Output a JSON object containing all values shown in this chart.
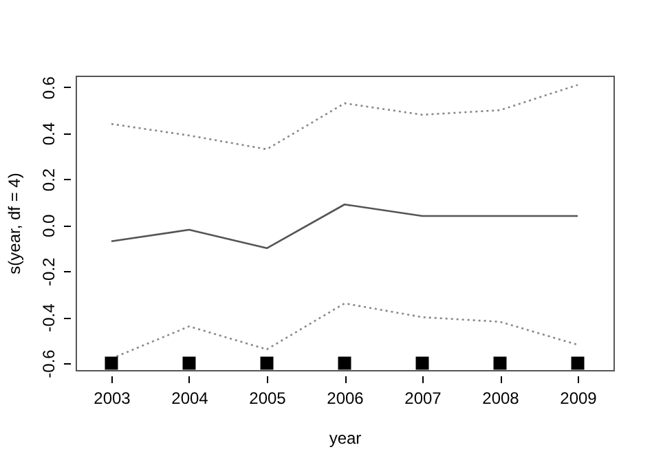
{
  "chart_data": {
    "type": "line",
    "xlabel": "year",
    "ylabel": "s(year, df = 4)",
    "x": [
      2003,
      2004,
      2005,
      2006,
      2007,
      2008,
      2009
    ],
    "series": [
      {
        "color": "#555555",
        "line_style": "solid",
        "values": [
          -0.07,
          -0.02,
          -0.1,
          0.09,
          0.04,
          0.04,
          0.04
        ]
      },
      {
        "color": "#888888",
        "line_style": "dotted",
        "values": [
          0.44,
          0.39,
          0.33,
          0.53,
          0.48,
          0.5,
          0.61
        ]
      },
      {
        "color": "#888888",
        "line_style": "dotted",
        "values": [
          -0.58,
          -0.44,
          -0.54,
          -0.34,
          -0.4,
          -0.42,
          -0.52
        ]
      },
      {
        "type": "scatter",
        "marker": "square",
        "color": "#000000",
        "values": [
          -0.6,
          -0.6,
          -0.6,
          -0.6,
          -0.6,
          -0.6,
          -0.6
        ]
      }
    ],
    "xlim": [
      2002.54,
      2009.46
    ],
    "ylim": [
      -0.63,
      0.65
    ],
    "xticks": [
      2003,
      2004,
      2005,
      2006,
      2007,
      2008,
      2009
    ],
    "yticks": [
      {
        "value": -0.6,
        "label": "-0.6"
      },
      {
        "value": -0.4,
        "label": "-0.4"
      },
      {
        "value": -0.2,
        "label": "-0.2"
      },
      {
        "value": 0,
        "label": "0.0"
      },
      {
        "value": 0.2,
        "label": "0.2"
      },
      {
        "value": 0.4,
        "label": "0.4"
      },
      {
        "value": 0.6,
        "label": "0.6"
      }
    ],
    "grid": false
  }
}
